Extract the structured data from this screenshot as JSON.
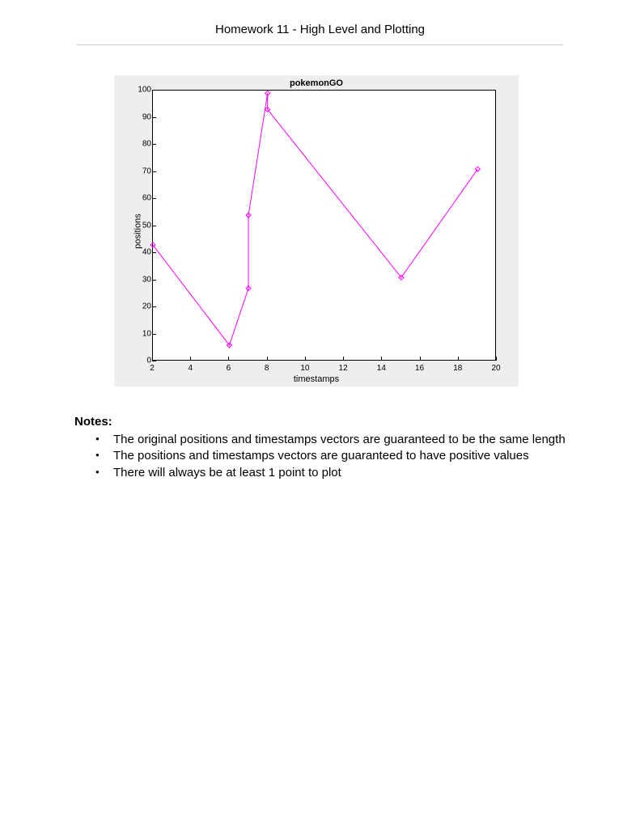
{
  "header": {
    "title": "Homework 11 - High Level and Plotting"
  },
  "chart": {
    "type": "line",
    "title": "pokemonGO",
    "title_fontsize": 11,
    "title_fontweight": "bold",
    "xlabel": "timestamps",
    "ylabel": "positions",
    "label_fontsize": 11,
    "tick_fontsize": 10,
    "background_color": "#eeeeee",
    "plot_background": "#ffffff",
    "border_color": "#000000",
    "line_color": "#ff00ff",
    "line_width": 1,
    "marker": "diamond",
    "marker_edge_color": "#ff00ff",
    "marker_face_color": "none",
    "marker_size": 6,
    "xlim": [
      2,
      20
    ],
    "ylim": [
      0,
      100
    ],
    "xticks": [
      2,
      4,
      6,
      8,
      10,
      12,
      14,
      16,
      18,
      20
    ],
    "yticks": [
      0,
      10,
      20,
      30,
      40,
      50,
      60,
      70,
      80,
      90,
      100
    ],
    "x_values": [
      2,
      6,
      7,
      7,
      8,
      8,
      15,
      19
    ],
    "y_values": [
      43,
      6,
      27,
      54,
      99,
      93,
      31,
      71
    ]
  },
  "notes": {
    "heading": "Notes:",
    "items": [
      "The original positions and timestamps vectors are guaranteed to be the same length",
      "The positions and timestamps vectors are guaranteed to have positive values",
      "There will always be at least 1 point to plot"
    ]
  }
}
